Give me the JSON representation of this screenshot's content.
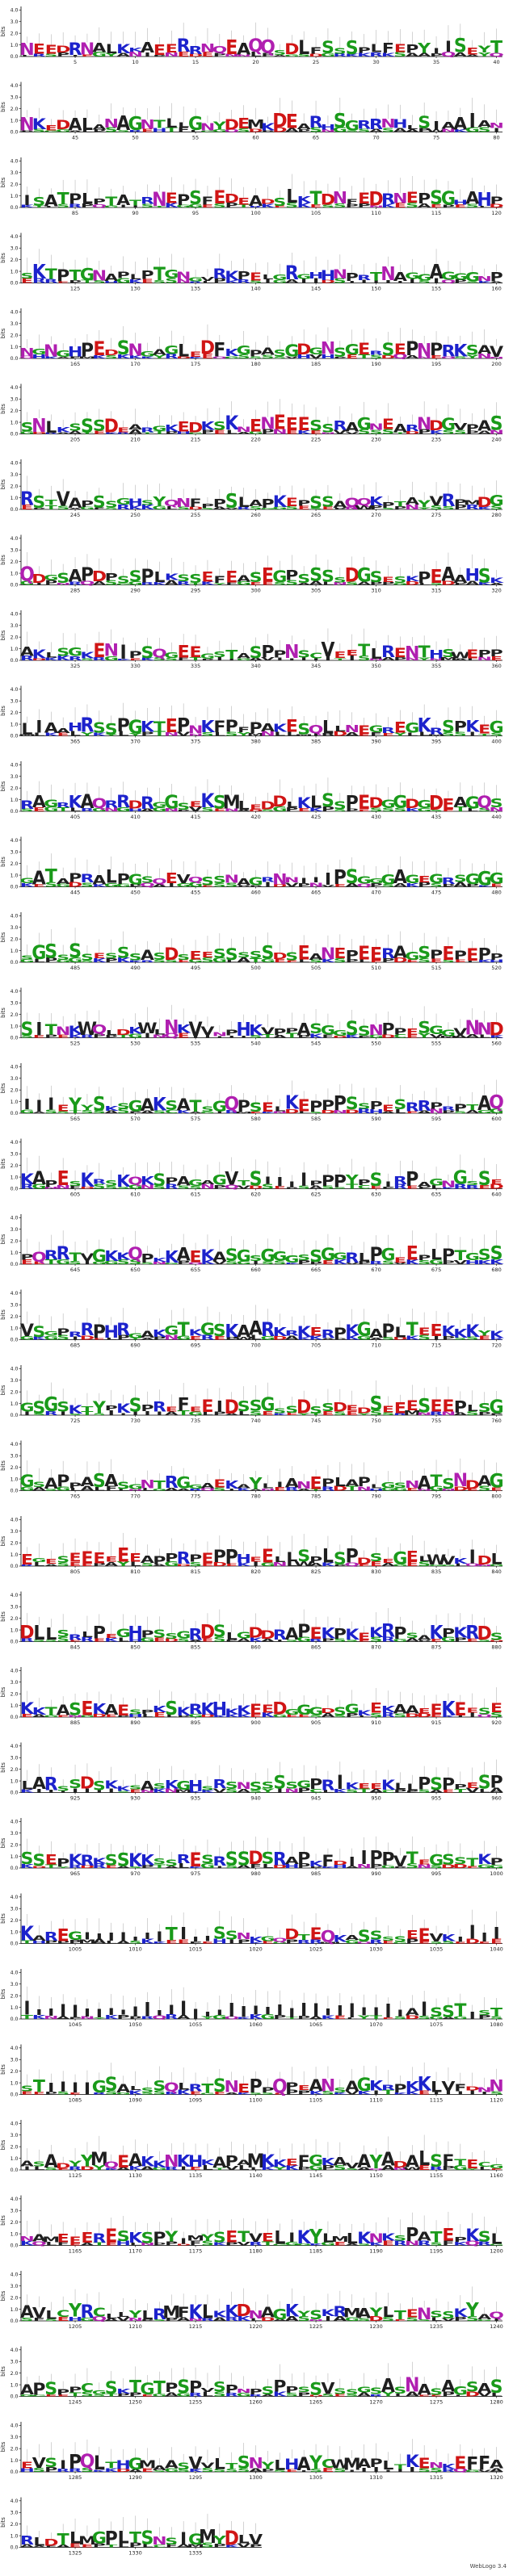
{
  "chart_data": {
    "type": "sequence-logo",
    "ylabel": "bits",
    "yticks": [
      "0.0",
      "1.0",
      "2.0",
      "3.0",
      "4.0"
    ],
    "ylim": [
      0,
      4.3
    ],
    "positions_per_row": 40,
    "total_positions": 1340,
    "colors": {
      "hydrophobic": "#1f1f1f",
      "polar": "#1a9a1a",
      "basic": "#1c22cc",
      "acidic": "#d01515",
      "amide": "#b01fb0"
    },
    "alphabet_classes": {
      "hydrophobic": "AVLIPWFMYG",
      "polar": "STCGYQN",
      "basic": "KRH",
      "acidic": "DE",
      "amide": "QN"
    },
    "rows": [
      {
        "start": 1,
        "ticks": [
          5,
          10,
          15,
          20,
          25,
          30,
          35,
          40
        ]
      },
      {
        "start": 41,
        "ticks": [
          45,
          50,
          55,
          60,
          65,
          70,
          75,
          80
        ]
      },
      {
        "start": 81,
        "ticks": [
          85,
          90,
          95,
          100,
          105,
          110,
          115,
          120
        ]
      },
      {
        "start": 121,
        "ticks": [
          125,
          130,
          135,
          140,
          145,
          150,
          155,
          160
        ]
      },
      {
        "start": 161,
        "ticks": [
          165,
          170,
          175,
          180,
          185,
          190,
          195,
          200
        ]
      },
      {
        "start": 201,
        "ticks": [
          205,
          210,
          215,
          220,
          225,
          230,
          235,
          240
        ]
      },
      {
        "start": 241,
        "ticks": [
          245,
          250,
          255,
          260,
          265,
          270,
          275,
          280
        ]
      },
      {
        "start": 281,
        "ticks": [
          285,
          290,
          295,
          300,
          305,
          310,
          315,
          320
        ]
      },
      {
        "start": 321,
        "ticks": [
          325,
          330,
          335,
          340,
          345,
          350,
          355,
          360
        ]
      },
      {
        "start": 361,
        "ticks": [
          365,
          370,
          375,
          380,
          385,
          390,
          395,
          400
        ]
      },
      {
        "start": 401,
        "ticks": [
          405,
          410,
          415,
          420,
          425,
          430,
          435,
          440
        ]
      },
      {
        "start": 441,
        "ticks": [
          445,
          450,
          455,
          460,
          465,
          470,
          475,
          480
        ]
      },
      {
        "start": 481,
        "ticks": [
          485,
          490,
          495,
          500,
          505,
          510,
          515,
          520
        ]
      },
      {
        "start": 521,
        "ticks": [
          525,
          530,
          535,
          540,
          545,
          550,
          555,
          560
        ]
      },
      {
        "start": 561,
        "ticks": [
          565,
          570,
          575,
          580,
          585,
          590,
          595,
          600
        ]
      },
      {
        "start": 601,
        "ticks": [
          605,
          610,
          615,
          620,
          625,
          630,
          635,
          640
        ]
      },
      {
        "start": 641,
        "ticks": [
          645,
          650,
          655,
          660,
          665,
          670,
          675,
          680
        ]
      },
      {
        "start": 681,
        "ticks": [
          685,
          690,
          695,
          700,
          705,
          710,
          715,
          720
        ]
      },
      {
        "start": 721,
        "ticks": [
          725,
          730,
          735,
          740,
          745,
          750,
          755,
          760
        ]
      },
      {
        "start": 761,
        "ticks": [
          765,
          770,
          775,
          780,
          785,
          790,
          795,
          800
        ]
      },
      {
        "start": 801,
        "ticks": [
          805,
          810,
          815,
          820,
          825,
          830,
          835,
          840
        ]
      },
      {
        "start": 841,
        "ticks": [
          845,
          850,
          855,
          860,
          865,
          870,
          875,
          880
        ]
      },
      {
        "start": 881,
        "ticks": [
          885,
          890,
          895,
          900,
          905,
          910,
          915,
          920
        ]
      },
      {
        "start": 921,
        "ticks": [
          925,
          930,
          935,
          940,
          945,
          950,
          955,
          960
        ]
      },
      {
        "start": 961,
        "ticks": [
          965,
          970,
          975,
          980,
          985,
          990,
          995,
          1000
        ]
      },
      {
        "start": 1001,
        "ticks": [
          1005,
          1010,
          1015,
          1020,
          1025,
          1030,
          1035,
          1040
        ]
      },
      {
        "start": 1041,
        "ticks": [
          1045,
          1050,
          1055,
          1060,
          1065,
          1070,
          1075,
          1080
        ]
      },
      {
        "start": 1081,
        "ticks": [
          1085,
          1090,
          1095,
          1100,
          1105,
          1110,
          1115,
          1120
        ]
      },
      {
        "start": 1121,
        "ticks": [
          1125,
          1130,
          1135,
          1140,
          1145,
          1150,
          1155,
          1160
        ]
      },
      {
        "start": 1161,
        "ticks": [
          1165,
          1170,
          1175,
          1180,
          1185,
          1190,
          1195,
          1200
        ]
      },
      {
        "start": 1201,
        "ticks": [
          1205,
          1210,
          1215,
          1220,
          1225,
          1230,
          1235,
          1240
        ]
      },
      {
        "start": 1241,
        "ticks": [
          1245,
          1250,
          1255,
          1260,
          1265,
          1270,
          1275,
          1280
        ]
      },
      {
        "start": 1281,
        "ticks": [
          1285,
          1290,
          1295,
          1300,
          1305,
          1310,
          1315,
          1320
        ]
      },
      {
        "start": 1321,
        "ticks": [
          1325,
          1330,
          1335
        ]
      }
    ],
    "consensus": "NEEDRNALKKAEERRNQEAQQSDLFSSSPLFEPYIISEYTNKEDALANAGNTLLGNYDEMKDEARHSGRRNHLSIAAIANISATPLPTATRNEPSFEDEADSLKTDNFEDRNEPSGHAHPSKTPTGNAPLPTGNGVRKPELGRGHHNPRTNAGGAGGGNPNGNGHPEDSNGAGLEDFKGPASGDGNSGERSEPNPRKSAVSNLKSSSDEARGKEDKSKNENEEESSRAGNEARNDGVPASRSTVAPSSGHSYQNFPPSLAPKEPSSAQQKPTAYVRPMDGQDGSAPDPSSPLKSSEFEASEGPSSSSDGSESKPEAAHSKAKLSGKENIPSQGEEGSTASPPNSCVEETLRENTHSWEPPLIAAHRSSPGKTEPNKFPFPAKESQLLNEGREGKRSPKEGRAGRKAQRRDRGGSEKSMLEDDLKLSSPEDGGDGDEAGQSGATAPRALPGSQEVQSSNAGRNNIIIPSGGGAGEGRSGGGSGSSSSESSSASDSEESSSSSDSEANEPEERAGSPEPEPPSITNKWQLDKWLNKVVNPHKVPPASGGSSNPPESGGVNNDIIIEYYSKSGAKSATSGQPSELKEPPPSSPESRRPRPTAQKAPESKRSKQKSPAGAGVTSIIIIPPPYPSIRPAGNGSSEPQRRTVGKKQPKKAEKASGSGGGSSGGRLPGEEPLPTGSSVSGPRRPHRGAKGTKGSKAARKRKERPKGAPLTEEKKKYKGSGSKTYPKSPREFEEIDSSGSSDSSDEDSEEESEEPLSGGSAPPASASGNTRGGAEKAYLIANEPLAPLGSNATSNDAGEGESEEEEEEAPPRPEPPHEELLSPLSPDSEGELWVKIDLDLLSRLPEGHPSSGRDSLGDDRAPEKPKEKRPSAKPKRDSKKTASEKAESPKSKRKHKKEEDGGGDSGKEKAAEEKEESELARSSDSKKSASKGHSRSNSSSSGPRIKEEKLLPSPPESPSSEPKRKSSKKSSRESRSSDSRAPKFDIIPPVTEGSSTKPKAREGIIIIIIITIIISSNKGQDTEQKASSSSEEVKIIIIIIIIIIIIIIIIIIIIIIIIIIIIIIIIIIIIAISSTISTSTIIIIGSALSSQLRTSNEPPQPEANSAGKRPKKLVFDNNASADYYMQEAKKNKHKAPAMKKEFGKAVAYADALSFTECGNAMEEERESKSPYIMYSETVELIKYLMLKNKSPATEPKSLAVLCYRCLLYLRMFKLKKDNAGKYSKRMAYLTENSSKYAQAPSPPCGSKTGTPSPVSPNPSPPSSVSSGSASNASAGSASEVSIPQLTHGMAASVVLTSNYLHAYCWMAPLTKENKEFFARLDTLMGPLTSNSIGMYDLVRYIRQGLMLBDAA"
  },
  "footer": {
    "text": "WebLogo 3.4"
  }
}
